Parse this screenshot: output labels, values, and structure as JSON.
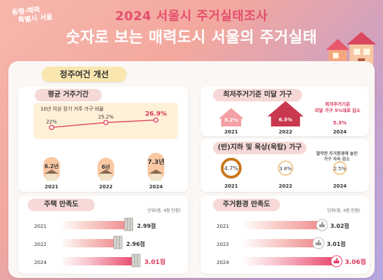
{
  "header": {
    "logo_line1": "동행·매력",
    "logo_line2": "특별시 서울",
    "title_line1": "2024 서울시 주거실태조사",
    "title_line2": "숫자로 보는 매력도시 서울의 주거실태"
  },
  "section": {
    "label": "정주여건 개선"
  },
  "residence": {
    "title": "평균 거주기간",
    "long_term_label": "10년 이상 장기 거주 가구 비율",
    "chart_data": {
      "type": "line",
      "categories": [
        "2021",
        "2022",
        "2024"
      ],
      "values": [
        22,
        25.2,
        26.9
      ],
      "labels": [
        "22%",
        "25.2%",
        "26.9%"
      ]
    },
    "years_labels": [
      "6.2년",
      "6년",
      "7.3년"
    ],
    "years_values": [
      6.2,
      6,
      7.3
    ]
  },
  "below_min": {
    "title": "최저주거기준 미달 가구",
    "items": [
      {
        "year": "2021",
        "value": "6.2%"
      },
      {
        "year": "2022",
        "value": "6.5%"
      },
      {
        "year": "2024",
        "value": "5.3%"
      }
    ],
    "note": "최저주거기준\n미달 가구 5%대로 감소"
  },
  "basement": {
    "title": "(반)지하 및 옥상(옥탑) 가구",
    "items": [
      {
        "year": "2021",
        "value": "4.7%"
      },
      {
        "year": "2022",
        "value": "3.8%"
      },
      {
        "year": "2024",
        "value": "2.5%"
      }
    ],
    "note": "열악한 주거환경에 놓인\n가구 지속 감소"
  },
  "housing_sat": {
    "title": "주택 만족도",
    "unit": "단위(점, 4점 만점)",
    "rows": [
      {
        "year": "2021",
        "value": "2.99점",
        "score": 2.99
      },
      {
        "year": "2022",
        "value": "2.96점",
        "score": 2.96
      },
      {
        "year": "2024",
        "value": "3.01점",
        "score": 3.01
      }
    ]
  },
  "env_sat": {
    "title": "주거환경 만족도",
    "unit": "단위(점, 4점 만점)",
    "rows": [
      {
        "year": "2021",
        "value": "3.02점",
        "score": 3.02
      },
      {
        "year": "2022",
        "value": "3.01점",
        "score": 3.01
      },
      {
        "year": "2024",
        "value": "3.06점",
        "score": 3.06
      }
    ]
  },
  "colors": {
    "accent": "#d8375a",
    "house": "#e8586b",
    "circle_dark": "#c9781c"
  }
}
